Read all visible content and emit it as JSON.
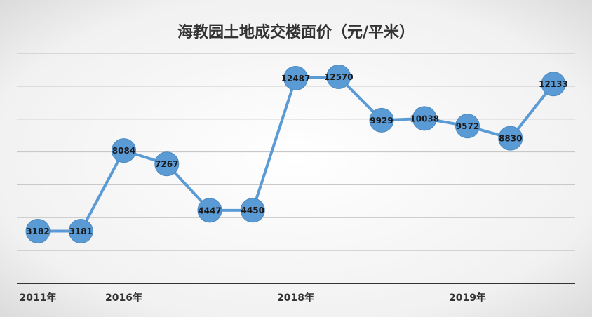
{
  "chart_data": {
    "type": "line",
    "title": "海教园土地成交楼面价（元/平米）",
    "categories": [
      "2011年",
      null,
      "2016年",
      null,
      null,
      null,
      "2018年",
      null,
      null,
      null,
      "2019年",
      null,
      null
    ],
    "values": [
      3182,
      3181,
      8084,
      7267,
      4447,
      4450,
      12487,
      12570,
      9929,
      10038,
      9572,
      8830,
      12133
    ],
    "color": "#5b9bd5",
    "ylim": [
      0,
      14000
    ],
    "yticks": [
      0,
      2000,
      4000,
      6000,
      8000,
      10000,
      12000,
      14000
    ],
    "grid": true
  }
}
